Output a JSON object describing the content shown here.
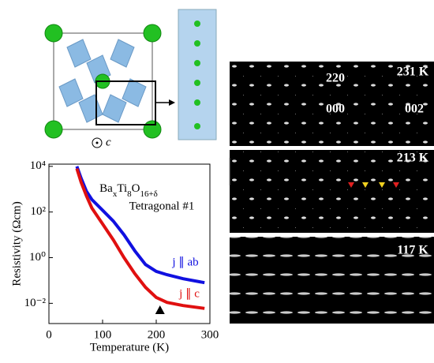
{
  "chart_data": {
    "type": "line",
    "xlabel": "Temperature (K)",
    "ylabel": "Resistivity (Ωcm)",
    "formula": [
      "Ba",
      "x",
      "Ti",
      "8",
      "O",
      "16+δ"
    ],
    "subtitle": "Tetragonal #1",
    "xlim": [
      0,
      300
    ],
    "xticks": [
      0,
      100,
      200,
      300
    ],
    "ylim": [
      0.0013,
      12500
    ],
    "log_y": true,
    "yticks": [
      {
        "value": 0.01,
        "label": "10⁻²"
      },
      {
        "value": 1,
        "label": "10⁰"
      },
      {
        "value": 100,
        "label": "10²"
      },
      {
        "value": 10000,
        "label": "10⁴"
      }
    ],
    "transition_marker": 207,
    "series": [
      {
        "name": "j ∥ ab",
        "color": "#1010e0",
        "x": [
          52,
          60,
          70,
          80,
          100,
          120,
          140,
          160,
          180,
          200,
          220,
          250,
          290
        ],
        "values": [
          10000,
          3000,
          800,
          350,
          120,
          40,
          10,
          2,
          0.5,
          0.25,
          0.18,
          0.12,
          0.08
        ]
      },
      {
        "name": "j ∥ c",
        "color": "#e01010",
        "x": [
          52,
          60,
          70,
          80,
          100,
          120,
          140,
          160,
          180,
          200,
          210,
          220,
          250,
          290
        ],
        "values": [
          8000,
          2000,
          500,
          150,
          30,
          6,
          1,
          0.2,
          0.05,
          0.018,
          0.014,
          0.011,
          0.008,
          0.006
        ]
      }
    ]
  },
  "structure": {
    "axis_label": "c"
  },
  "diffraction": {
    "panels": [
      {
        "temperature": "231 K",
        "labels": [
          "220",
          "000",
          "002"
        ]
      },
      {
        "temperature": "213 K"
      },
      {
        "temperature": "117 K"
      }
    ]
  }
}
